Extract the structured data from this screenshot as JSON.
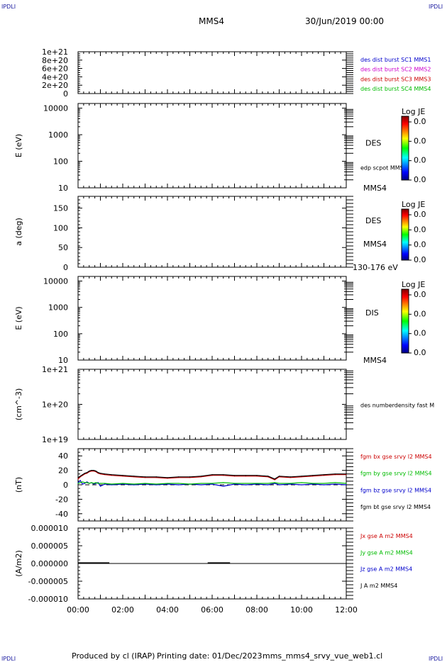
{
  "header": {
    "corner_left": "IPDLI",
    "corner_right": "IPDLI",
    "spacecraft": "MMS4",
    "date": "30/Jun/2019 00:00"
  },
  "footer": {
    "produced_by": "Produced by cl (IRAP)",
    "printing_date": "Printing date: 01/Dec/2023",
    "product": "mms_mms4_srvy_vue_web1.cl",
    "corner_left": "IPDLI",
    "corner_right": "IPDLI"
  },
  "time_axis": {
    "ticks": [
      "00:00",
      "02:00",
      "04:00",
      "06:00",
      "08:00",
      "10:00",
      "12:00"
    ],
    "hours": [
      0,
      2,
      4,
      6,
      8,
      10,
      12
    ],
    "range": [
      0,
      12
    ]
  },
  "panels": [
    {
      "id": "dist",
      "ylabel": "",
      "yticks": [
        "1e+21",
        "8e+20",
        "6e+20",
        "4e+20",
        "2e+20",
        "0"
      ],
      "ytick_values": [
        1e+21,
        8e+20,
        6e+20,
        4e+20,
        2e+20,
        0
      ],
      "ylim": [
        0,
        1e+21
      ],
      "scale": "linear",
      "legend": [
        {
          "label": "des dist burst SC1 MMS1",
          "color": "#0000cc"
        },
        {
          "label": "des dist burst SC2 MMS2",
          "color": "#cc00cc"
        },
        {
          "label": "des dist burst SC3 MMS3",
          "color": "#cc0000"
        },
        {
          "label": "des dist burst SC4 MMS4",
          "color": "#00bb00"
        }
      ],
      "zero_line": true
    },
    {
      "id": "des-energy",
      "ylabel": "E (eV)",
      "yticks": [
        "10000",
        "1000",
        "100",
        "10"
      ],
      "ytick_values": [
        10000,
        1000,
        100,
        10
      ],
      "ylim": [
        10,
        15000
      ],
      "scale": "log",
      "side_label": "DES",
      "side_sub": "MMS4",
      "extra_label": "edp scpot MMS4",
      "colorbar": {
        "title": "Log JE",
        "values": [
          "0.0",
          "0.0",
          "0.0",
          "0.0"
        ]
      }
    },
    {
      "id": "des-pitch",
      "ylabel": "a (deg)",
      "yticks": [
        "150",
        "100",
        "50",
        "0"
      ],
      "ytick_values": [
        150,
        100,
        50,
        0
      ],
      "ylim": [
        0,
        180
      ],
      "scale": "linear",
      "side_label": "DES",
      "side_sub": "MMS4",
      "extra_label": "130-176 eV",
      "colorbar": {
        "title": "Log JE",
        "values": [
          "0.0",
          "0.0",
          "0.0",
          "0.0"
        ]
      }
    },
    {
      "id": "dis-energy",
      "ylabel": "E (eV)",
      "yticks": [
        "10000",
        "1000",
        "100",
        "10"
      ],
      "ytick_values": [
        10000,
        1000,
        100,
        10
      ],
      "ylim": [
        10,
        15000
      ],
      "scale": "log",
      "side_label": "DIS",
      "side_sub": "MMS4",
      "colorbar": {
        "title": "Log JE",
        "values": [
          "0.0",
          "0.0",
          "0.0",
          "0.0"
        ]
      }
    },
    {
      "id": "density",
      "ylabel": "(cm^-3)",
      "yticks": [
        "1e+21",
        "1e+20",
        "1e+19"
      ],
      "ytick_values": [
        1e+21,
        1e+20,
        1e+19
      ],
      "ylim": [
        1e+19,
        1e+21
      ],
      "scale": "log",
      "legend": [
        {
          "label": "des numberdensity fast M",
          "color": "#000000"
        }
      ]
    },
    {
      "id": "fgm",
      "ylabel": "(nT)",
      "yticks": [
        "40",
        "20",
        "0",
        "-20",
        "-40"
      ],
      "ytick_values": [
        40,
        20,
        0,
        -20,
        -40
      ],
      "ylim": [
        -50,
        50
      ],
      "scale": "linear",
      "zero_line": true,
      "legend": [
        {
          "label": "fgm bx gse srvy l2 MMS4",
          "color": "#cc0000"
        },
        {
          "label": "fgm by gse srvy l2 MMS4",
          "color": "#00bb00"
        },
        {
          "label": "fgm bz gse srvy l2 MMS4",
          "color": "#0000cc"
        },
        {
          "label": "fgm bt gse srvy l2 MMS4",
          "color": "#000000"
        }
      ]
    },
    {
      "id": "current",
      "ylabel": "(A/m2)",
      "yticks": [
        "0.000010",
        "0.000005",
        "0.000000",
        "-0.000005",
        "-0.000010"
      ],
      "ytick_values": [
        1e-05,
        5e-06,
        0,
        -5e-06,
        -1e-05
      ],
      "ylim": [
        -1e-05,
        1e-05
      ],
      "scale": "linear",
      "legend": [
        {
          "label": "Jx gse A m2 MMS4",
          "color": "#cc0000"
        },
        {
          "label": "Jy gse A m2 MMS4",
          "color": "#00bb00"
        },
        {
          "label": "Jz gse A m2 MMS4",
          "color": "#0000cc"
        },
        {
          "label": "J A m2 MMS4",
          "color": "#000000"
        }
      ]
    }
  ],
  "chart_data": {
    "type": "line",
    "title": "MMS4",
    "xlabel": "",
    "ylabel": "(nT)",
    "x": [
      0,
      0.1,
      0.2,
      0.3,
      0.4,
      0.5,
      0.6,
      0.7,
      0.8,
      0.9,
      1.0,
      1.2,
      1.5,
      2.0,
      2.5,
      3.0,
      3.5,
      4.0,
      4.5,
      5.0,
      5.5,
      6.0,
      6.5,
      7.0,
      7.5,
      8.0,
      8.5,
      8.8,
      9.0,
      9.5,
      10.0,
      10.5,
      11.0,
      11.5,
      12.0
    ],
    "series": [
      {
        "name": "fgm bt gse srvy l2 MMS4",
        "color": "#000000",
        "values": [
          10,
          12,
          14,
          16,
          17,
          19,
          20,
          20,
          19,
          17,
          16,
          15,
          14,
          13,
          12,
          11,
          11,
          10,
          11,
          11,
          12,
          14,
          14,
          13,
          13,
          13,
          12,
          8,
          12,
          11,
          12,
          13,
          14,
          15,
          15
        ]
      },
      {
        "name": "fgm bx gse srvy l2 MMS4",
        "color": "#cc0000",
        "values": [
          8,
          11,
          13,
          15,
          16,
          18,
          19,
          19,
          18,
          16,
          15,
          14,
          13,
          12,
          11,
          10,
          10,
          9,
          10,
          10,
          11,
          13,
          13,
          12,
          12,
          12,
          11,
          7,
          11,
          10,
          11,
          12,
          13,
          14,
          14
        ]
      },
      {
        "name": "fgm by gse srvy l2 MMS4",
        "color": "#00bb00",
        "values": [
          2,
          3,
          4,
          3,
          3,
          2,
          3,
          2,
          3,
          2,
          2,
          2,
          1,
          2,
          1,
          2,
          1,
          2,
          2,
          1,
          2,
          2,
          3,
          2,
          2,
          2,
          2,
          3,
          2,
          2,
          3,
          2,
          2,
          3,
          2
        ]
      },
      {
        "name": "fgm bz gse srvy l2 MMS4",
        "color": "#0000cc",
        "values": [
          3,
          6,
          1,
          2,
          4,
          2,
          3,
          1,
          2,
          3,
          -2,
          1,
          0,
          1,
          0,
          1,
          0,
          1,
          0,
          1,
          0,
          1,
          -2,
          1,
          0,
          1,
          0,
          2,
          0,
          1,
          0,
          1,
          0,
          1,
          0
        ]
      }
    ],
    "ylim": [
      -50,
      50
    ],
    "xlim": [
      0,
      12
    ]
  }
}
